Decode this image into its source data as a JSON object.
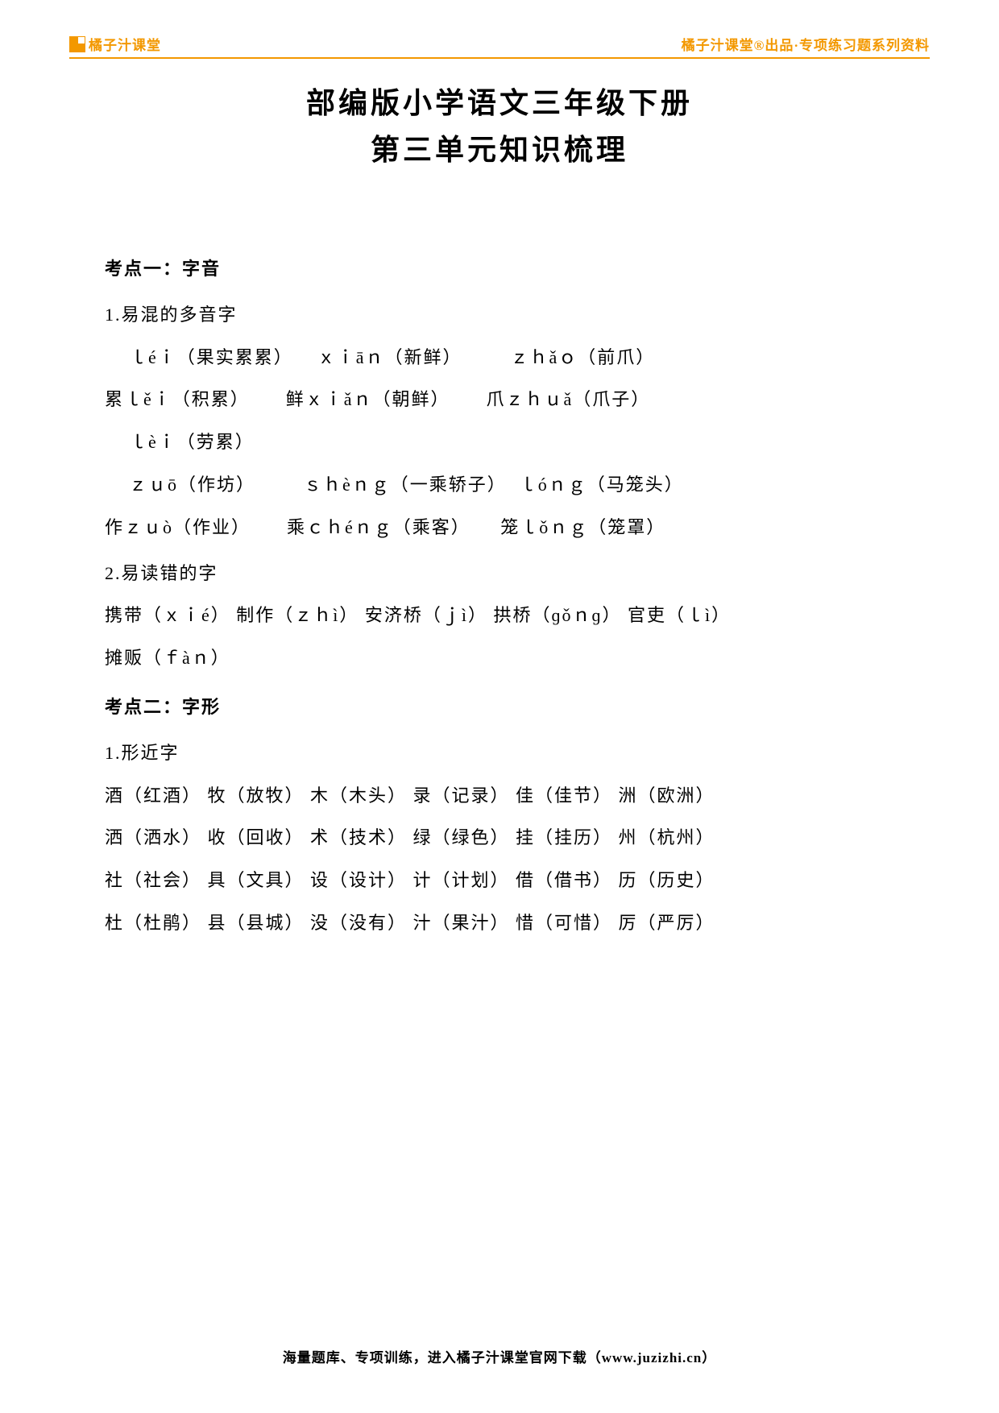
{
  "header": {
    "logo_text": "橘子汁课堂",
    "right_text": "橘子汁课堂®出品·专项练习题系列资料",
    "logo_colors": {
      "tl": "#f39800",
      "tr": "#ffffff",
      "bl": "#f39800",
      "br": "#f39800"
    },
    "accent_color": "#f39800"
  },
  "title": {
    "line1": "部编版小学语文三年级下册",
    "line2": "第三单元知识梳理"
  },
  "sections": [
    {
      "heading": "考点一：字音",
      "blocks": [
        {
          "subheading": "1.易混的多音字",
          "lines": [
            "    ｌéｉ（果实累累）    ｘｉāｎ（新鲜）        ｚｈǎｏ（前爪）",
            "累ｌěｉ（积累）      鲜ｘｉǎｎ（朝鲜）      爪ｚｈｕǎ（爪子）",
            "    ｌèｉ（劳累）",
            "    ｚｕō（作坊）        ｓｈèｎｇ（一乘轿子）  ｌóｎｇ（马笼头）",
            "作ｚｕò（作业）      乘ｃｈéｎｇ（乘客）     笼ｌǒｎｇ（笼罩）"
          ]
        },
        {
          "subheading": "2.易读错的字",
          "lines": [
            "携带（ｘｉé） 制作（ｚｈì） 安济桥（ｊì） 拱桥（ɡǒｎɡ） 官吏（ｌì）",
            "摊贩（ｆàｎ）"
          ]
        }
      ]
    },
    {
      "heading": "考点二：字形",
      "blocks": [
        {
          "subheading": "1.形近字",
          "lines": [
            "酒（红酒） 牧（放牧） 木（木头） 录（记录） 佳（佳节） 洲（欧洲）",
            "洒（洒水） 收（回收） 术（技术） 绿（绿色） 挂（挂历） 州（杭州）",
            "社（社会） 具（文具） 设（设计） 计（计划） 借（借书） 历（历史）",
            "杜（杜鹃） 县（县城） 没（没有） 汁（果汁） 惜（可惜） 厉（严厉）"
          ]
        }
      ]
    }
  ],
  "footer": {
    "text": "海量题库、专项训练，进入橘子汁课堂官网下载（www.juzizhi.cn）"
  }
}
